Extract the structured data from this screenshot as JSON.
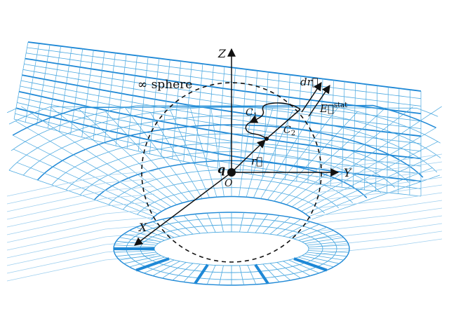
{
  "colors": {
    "grid": "#4aa8e0",
    "grid_heavy": "#1e88d6",
    "grid_light": "#9fd0f0",
    "ink": "#111111",
    "background": "#ffffff"
  },
  "labels": {
    "sphere": "∞ sphere",
    "z_axis": "Z",
    "y_axis": "Y",
    "x_axis": "X",
    "origin": "O",
    "charge": "q",
    "position_vector": "r⃗",
    "path1_main": "C",
    "path1_sub": "1",
    "path2_main": "C",
    "path2_sub": "2",
    "dr": "dr⃗",
    "field_main": "E⃗",
    "field_sup": "stat"
  },
  "icons": {
    "arrow_head": "triangle-arrowhead",
    "charge_point": "filled-dot"
  }
}
